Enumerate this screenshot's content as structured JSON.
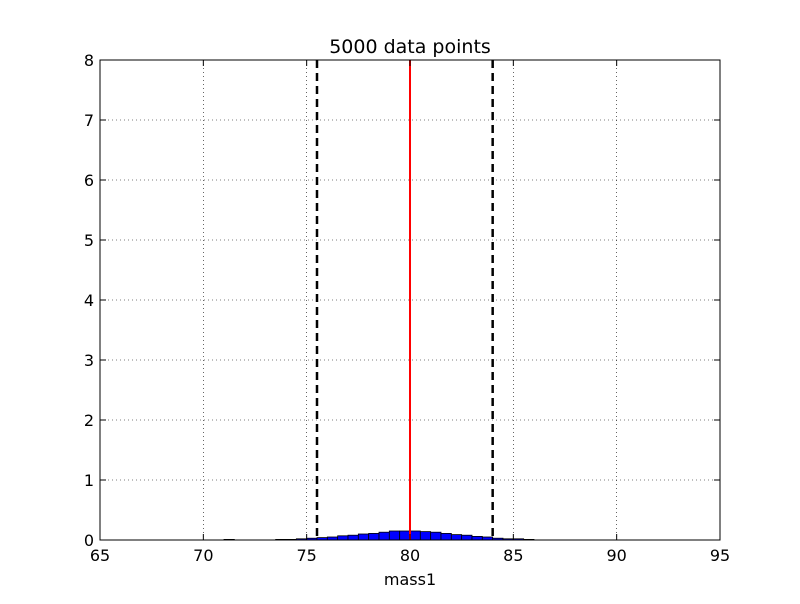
{
  "chart_data": {
    "type": "bar",
    "title": "5000 data points",
    "xlabel": "mass1",
    "ylabel": "",
    "xlim": [
      65,
      95
    ],
    "ylim": [
      0,
      8
    ],
    "xticks": [
      "65",
      "70",
      "75",
      "80",
      "85",
      "90",
      "95"
    ],
    "yticks": [
      "0",
      "1",
      "2",
      "3",
      "4",
      "5",
      "6",
      "7",
      "8"
    ],
    "grid": true,
    "bin_width": 0.5,
    "bins": [
      {
        "x": 71.25,
        "y": 0.01
      },
      {
        "x": 73.75,
        "y": 0.01
      },
      {
        "x": 74.25,
        "y": 0.01
      },
      {
        "x": 74.75,
        "y": 0.02
      },
      {
        "x": 75.25,
        "y": 0.03
      },
      {
        "x": 75.75,
        "y": 0.04
      },
      {
        "x": 76.25,
        "y": 0.05
      },
      {
        "x": 76.75,
        "y": 0.07
      },
      {
        "x": 77.25,
        "y": 0.08
      },
      {
        "x": 77.75,
        "y": 0.1
      },
      {
        "x": 78.25,
        "y": 0.11
      },
      {
        "x": 78.75,
        "y": 0.13
      },
      {
        "x": 79.25,
        "y": 0.15
      },
      {
        "x": 79.75,
        "y": 0.15
      },
      {
        "x": 80.25,
        "y": 0.15
      },
      {
        "x": 80.75,
        "y": 0.14
      },
      {
        "x": 81.25,
        "y": 0.13
      },
      {
        "x": 81.75,
        "y": 0.11
      },
      {
        "x": 82.25,
        "y": 0.09
      },
      {
        "x": 82.75,
        "y": 0.08
      },
      {
        "x": 83.25,
        "y": 0.06
      },
      {
        "x": 83.75,
        "y": 0.05
      },
      {
        "x": 84.25,
        "y": 0.03
      },
      {
        "x": 84.75,
        "y": 0.02
      },
      {
        "x": 85.25,
        "y": 0.02
      },
      {
        "x": 85.75,
        "y": 0.01
      }
    ],
    "vertical_lines": [
      {
        "x": 75.5,
        "style": "dashed",
        "color": "#000000"
      },
      {
        "x": 80.0,
        "style": "solid",
        "color": "#ff0000"
      },
      {
        "x": 84.0,
        "style": "dashed",
        "color": "#000000"
      }
    ],
    "bar_color": "#0000ff"
  }
}
